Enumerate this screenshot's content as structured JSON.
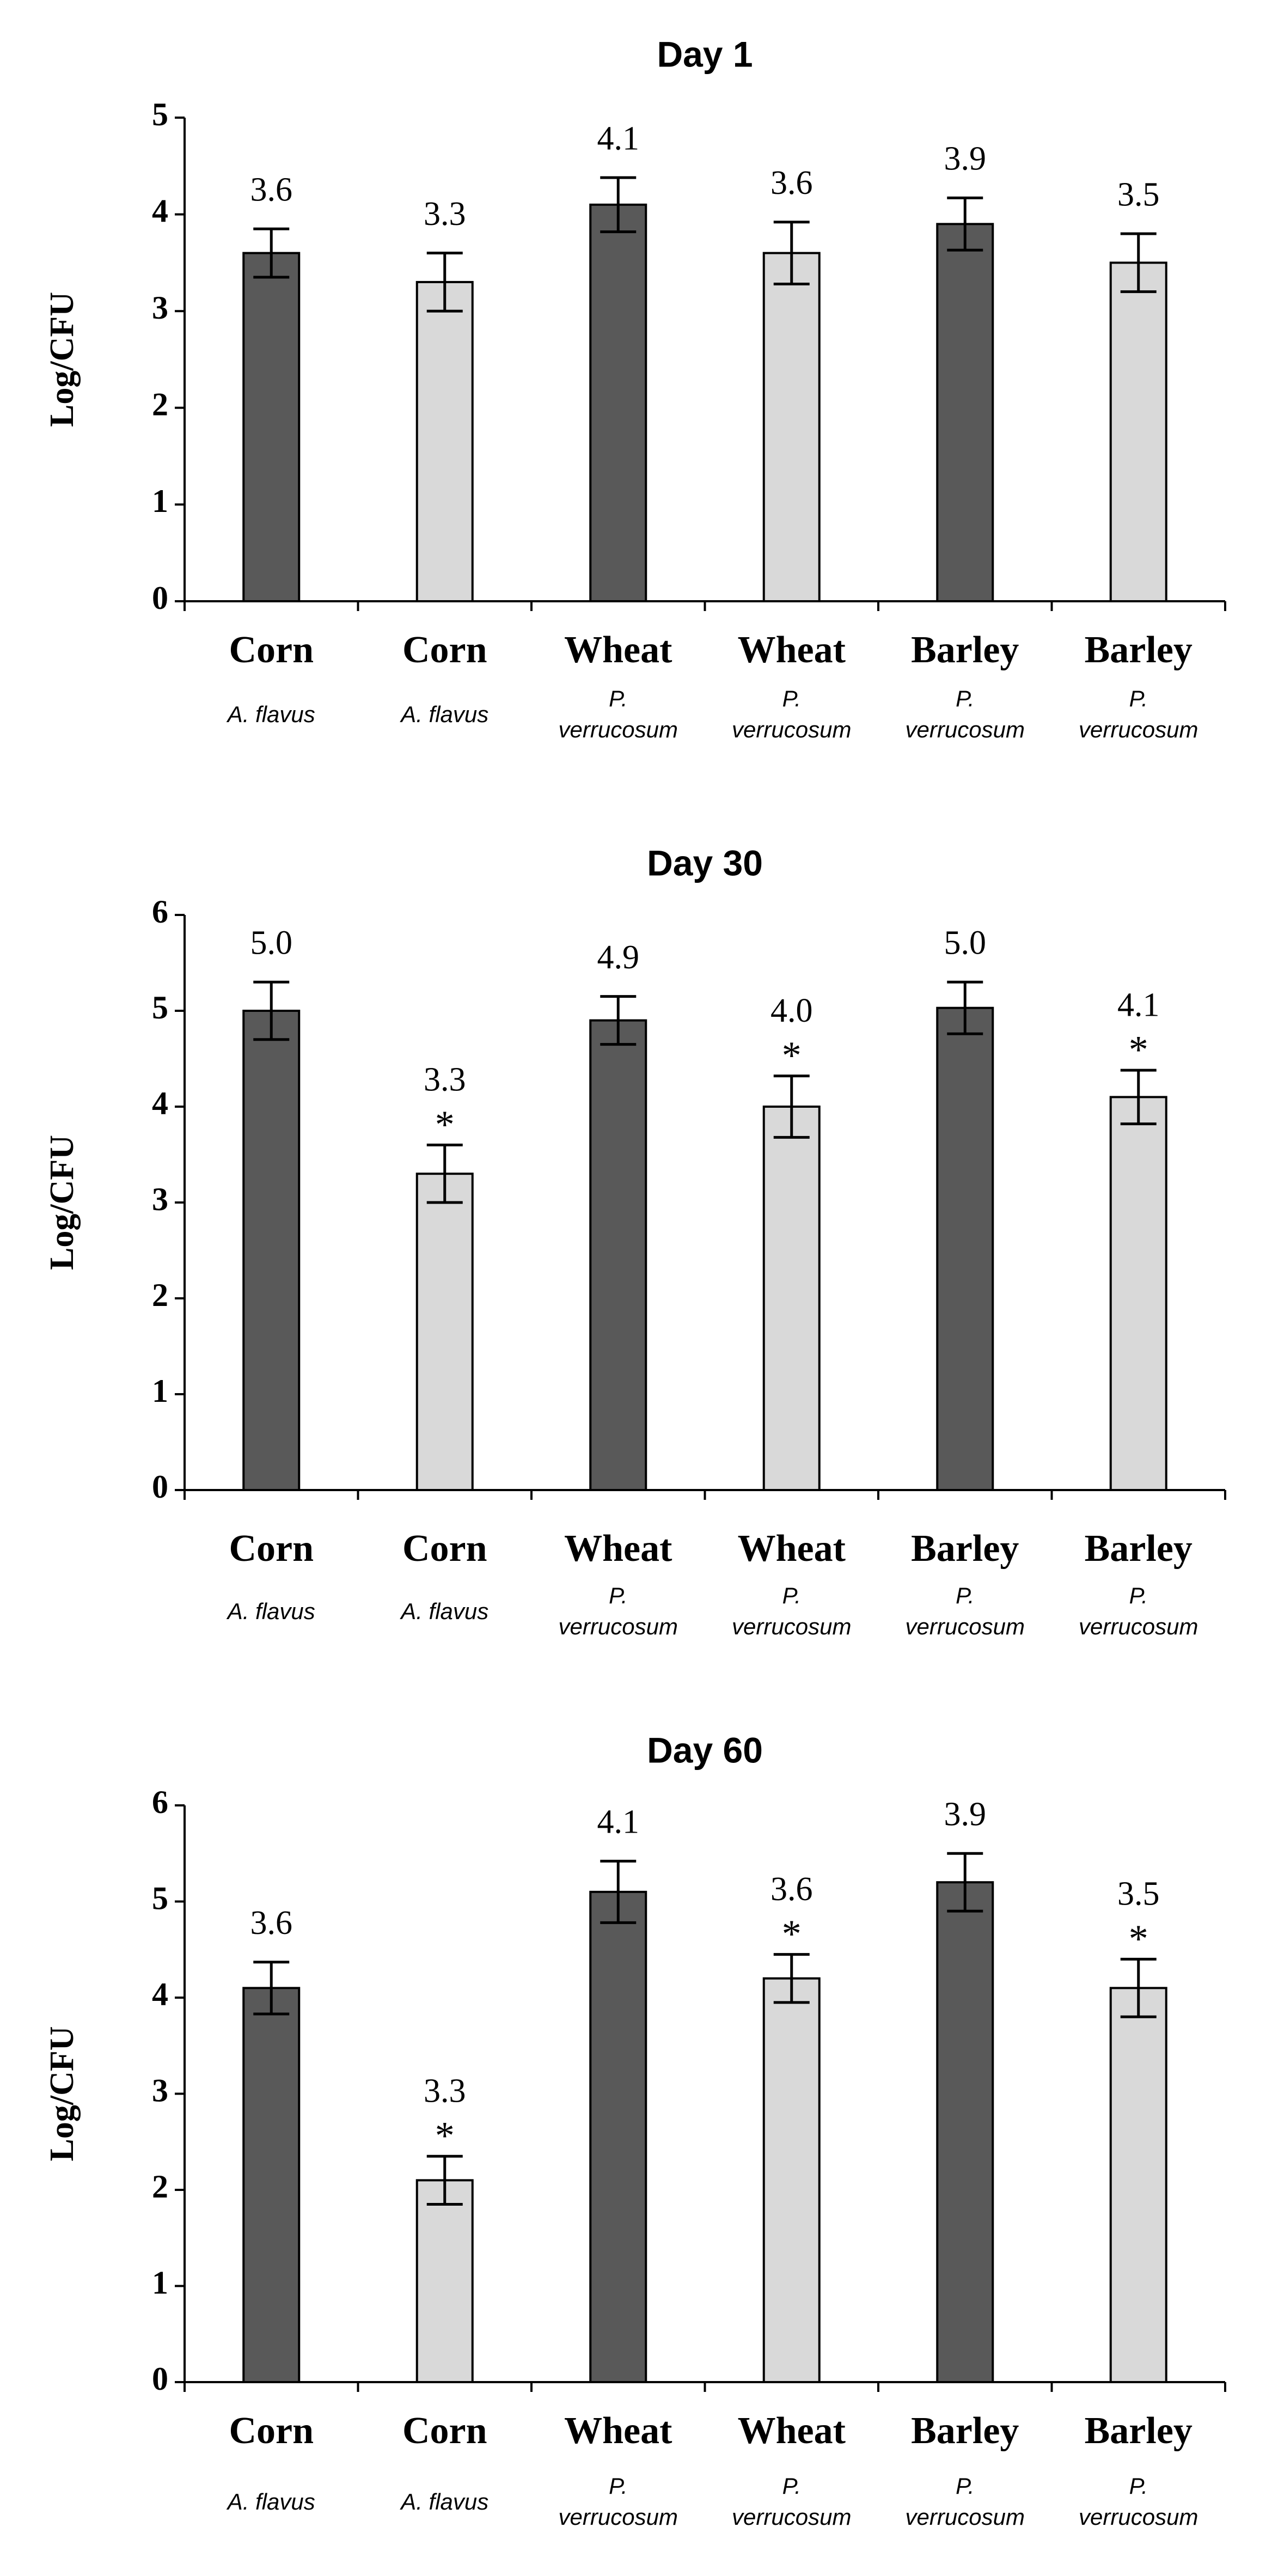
{
  "chart_data": [
    {
      "type": "bar",
      "title": "Day 1",
      "y_label": "Log/CFU",
      "categories": [
        "Corn",
        "Corn",
        "Wheat",
        "Wheat",
        "Barley",
        "Barley"
      ],
      "subtitles": [
        "A. flavus",
        "A. flavus",
        "P. verrucosum",
        "P. verrucosum",
        "P. verrucosum",
        "P. verrucosum"
      ],
      "values": [
        3.6,
        3.3,
        4.1,
        3.6,
        3.9,
        3.5
      ],
      "value_labels": [
        "3.6",
        "3.3",
        "4.1",
        "3.6",
        "3.9",
        "3.5"
      ],
      "errors": [
        0.25,
        0.3,
        0.28,
        0.32,
        0.27,
        0.3
      ],
      "colors": [
        "#595959",
        "#d9d9d9",
        "#595959",
        "#d9d9d9",
        "#595959",
        "#d9d9d9"
      ],
      "ylim": [
        0,
        5
      ],
      "yticks": [
        0,
        1,
        2,
        3,
        4,
        5
      ]
    },
    {
      "type": "bar",
      "title": "Day 30",
      "y_label": "Log/CFU",
      "categories": [
        "Corn",
        "Corn",
        "Wheat",
        "Wheat",
        "Barley",
        "Barley"
      ],
      "subtitles": [
        "A. flavus",
        "A. flavus",
        "P. verrucosum",
        "P. verrucosum",
        "P. verrucosum",
        "P. verrucosum"
      ],
      "values": [
        5.0,
        3.3,
        4.9,
        4.0,
        5.03,
        4.1
      ],
      "value_labels": [
        "5.0",
        "3.3",
        "4.9",
        "4.0",
        "5.0",
        "4.1"
      ],
      "errors": [
        0.3,
        0.3,
        0.25,
        0.32,
        0.27,
        0.28
      ],
      "markers": [
        null,
        "*",
        null,
        "*",
        null,
        "*"
      ],
      "colors": [
        "#595959",
        "#d9d9d9",
        "#595959",
        "#d9d9d9",
        "#595959",
        "#d9d9d9"
      ],
      "ylim": [
        0,
        6
      ],
      "yticks": [
        0,
        1,
        2,
        3,
        4,
        5,
        6
      ]
    },
    {
      "type": "bar",
      "title": "Day 60",
      "y_label": "Log/CFU",
      "categories": [
        "Corn",
        "Corn",
        "Wheat",
        "Wheat",
        "Barley",
        "Barley"
      ],
      "subtitles": [
        "A. flavus",
        "A. flavus",
        "P. verrucosum",
        "P. verrucosum",
        "P. verrucosum",
        "P. verrucosum"
      ],
      "values": [
        4.1,
        2.1,
        5.1,
        4.2,
        5.2,
        4.1
      ],
      "annotations": [
        "3.6",
        "3.3",
        "4.1",
        "3.6",
        "3.9",
        "3.5"
      ],
      "errors": [
        0.27,
        0.25,
        0.32,
        0.25,
        0.3,
        0.3
      ],
      "markers": [
        null,
        "*",
        null,
        "*",
        null,
        "*"
      ],
      "colors": [
        "#595959",
        "#d9d9d9",
        "#595959",
        "#d9d9d9",
        "#595959",
        "#d9d9d9"
      ],
      "ylim": [
        0,
        6
      ],
      "yticks": [
        0,
        1,
        2,
        3,
        4,
        5,
        6
      ]
    }
  ]
}
